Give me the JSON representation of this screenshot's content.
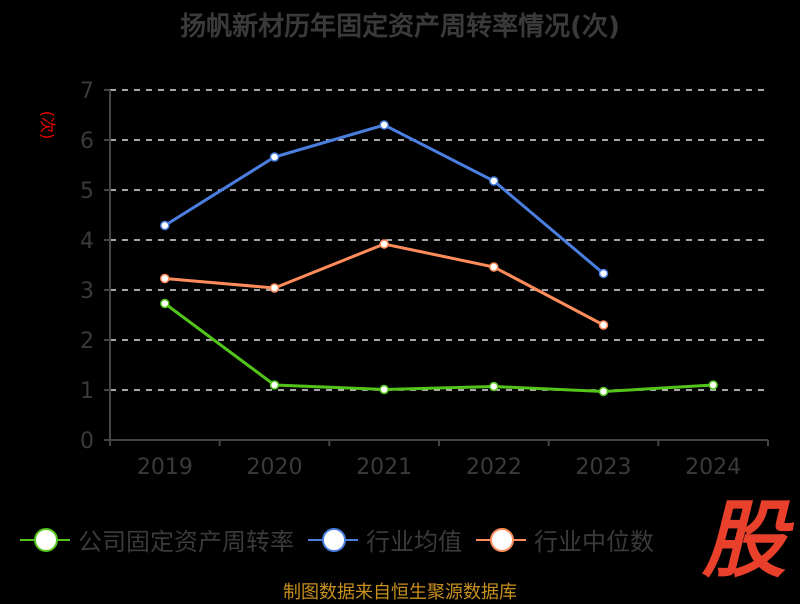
{
  "chart_data": {
    "type": "line",
    "title": "扬帆新材历年固定资产周转率情况(次)",
    "ylabel": "(次)",
    "xlabel": "",
    "categories": [
      "2019",
      "2020",
      "2021",
      "2022",
      "2023",
      "2024"
    ],
    "ylim": [
      0,
      7
    ],
    "yticks": [
      "0",
      "1",
      "2",
      "3",
      "4",
      "5",
      "6",
      "7"
    ],
    "grid": true,
    "legend_position": "bottom",
    "series": [
      {
        "name": "公司固定资产周转率",
        "color": "#52c41a",
        "values": [
          2.73,
          1.1,
          1.01,
          1.07,
          0.97,
          1.1
        ]
      },
      {
        "name": "行业均值",
        "color": "#4a7fe0",
        "values": [
          4.29,
          5.66,
          6.3,
          5.18,
          3.33,
          null
        ]
      },
      {
        "name": "行业中位数",
        "color": "#ff8c5a",
        "values": [
          3.23,
          3.04,
          3.92,
          3.46,
          2.3,
          null
        ]
      }
    ]
  },
  "source": "制图数据来自恒生聚源数据库",
  "logo": "股"
}
